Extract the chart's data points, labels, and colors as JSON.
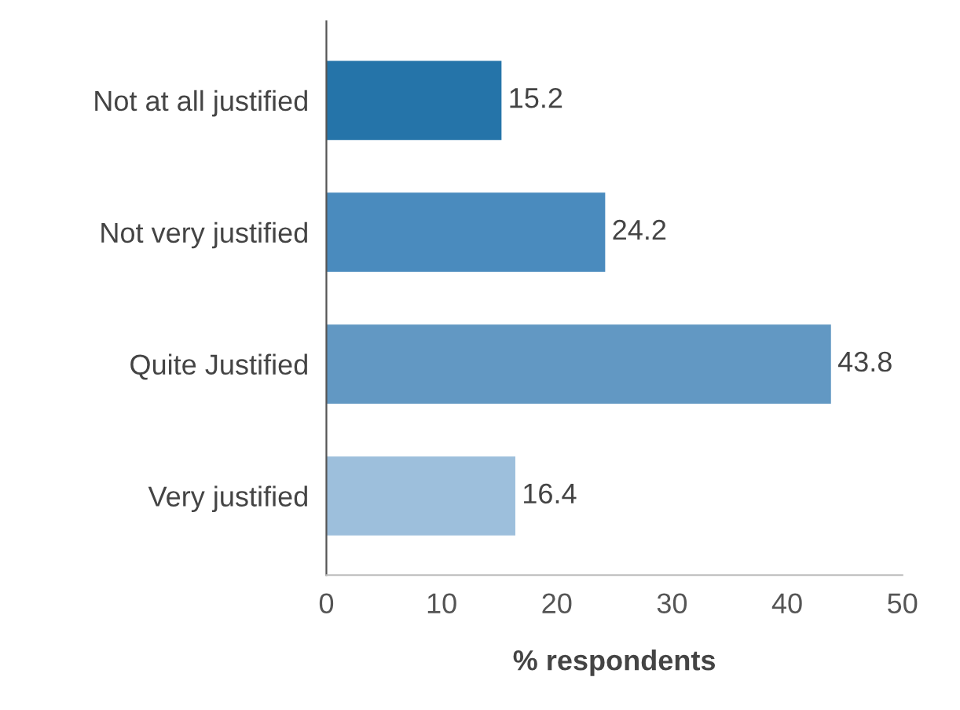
{
  "chart_data": {
    "type": "bar",
    "orientation": "horizontal",
    "xlabel": "% respondents",
    "categories": [
      "Not at all justified",
      "Not very justified",
      "Quite Justified",
      "Very justified"
    ],
    "values": [
      15.2,
      24.2,
      43.8,
      16.4
    ],
    "colors": [
      "#2574a9",
      "#4a8bbe",
      "#6298c3",
      "#9dbfdc"
    ],
    "xlim": [
      0,
      50
    ],
    "xticks": [
      0,
      10,
      20,
      30,
      40,
      50
    ],
    "data_labels": true,
    "grid": false
  }
}
